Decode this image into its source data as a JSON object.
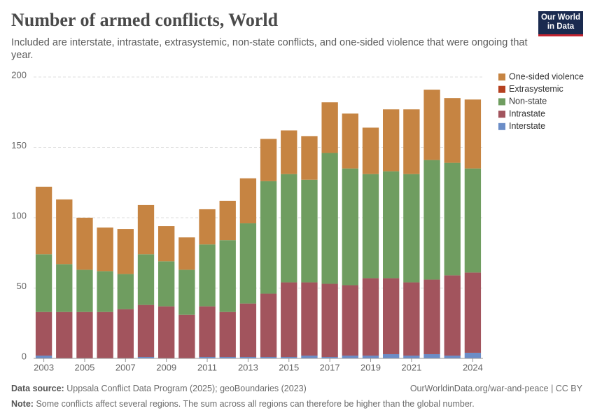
{
  "logo": [
    "Our World",
    "in Data"
  ],
  "chart_data": {
    "type": "stacked-bar",
    "title": "Number of armed conflicts, World",
    "subtitle": "Included are interstate, intrastate, extrasystemic, non-state conflicts, and one-sided violence that were ongoing that year.",
    "source_label": "Data source:",
    "source": "Uppsala Conflict Data Program (2025); geoBoundaries (2023)",
    "url": "OurWorldinData.org/war-and-peace | CC BY",
    "note_label": "Note:",
    "note": "Some conflicts affect several regions. The sum across all regions can therefore be higher than the global number.",
    "x": [
      2003,
      2004,
      2005,
      2006,
      2007,
      2008,
      2009,
      2010,
      2011,
      2012,
      2013,
      2014,
      2015,
      2016,
      2017,
      2018,
      2019,
      2020,
      2021,
      2022,
      2023,
      2024
    ],
    "xlim": [
      2002.5,
      2024.5
    ],
    "xticks": [
      2003,
      2005,
      2007,
      2009,
      2011,
      2013,
      2015,
      2017,
      2019,
      2021,
      2024
    ],
    "ylim": [
      0,
      200
    ],
    "yticks": [
      0,
      50,
      100,
      150,
      200
    ],
    "grid": true,
    "legend": "right",
    "series": [
      {
        "name": "Interstate",
        "color": "#6b8dc7",
        "values": [
          2,
          0,
          0,
          0,
          0,
          1,
          0,
          0,
          1,
          1,
          1,
          1,
          1,
          2,
          1,
          2,
          2,
          3,
          2,
          3,
          2,
          4
        ]
      },
      {
        "name": "Intrastate",
        "color": "#a2545d",
        "values": [
          31,
          33,
          33,
          33,
          35,
          37,
          37,
          31,
          36,
          32,
          38,
          45,
          53,
          52,
          52,
          50,
          55,
          54,
          52,
          53,
          57,
          57
        ]
      },
      {
        "name": "Non-state",
        "color": "#6f9d60",
        "values": [
          41,
          34,
          30,
          29,
          25,
          36,
          32,
          32,
          44,
          51,
          57,
          80,
          77,
          73,
          93,
          83,
          74,
          76,
          77,
          85,
          80,
          74
        ]
      },
      {
        "name": "Extrasystemic",
        "color": "#b5401f",
        "values": [
          0,
          0,
          0,
          0,
          0,
          0,
          0,
          0,
          0,
          0,
          0,
          0,
          0,
          0,
          0,
          0,
          0,
          0,
          0,
          0,
          0,
          0
        ]
      },
      {
        "name": "One-sided violence",
        "color": "#c68442",
        "values": [
          48,
          46,
          37,
          31,
          32,
          35,
          25,
          23,
          25,
          28,
          32,
          30,
          31,
          31,
          36,
          39,
          33,
          44,
          46,
          50,
          46,
          49
        ]
      }
    ]
  }
}
